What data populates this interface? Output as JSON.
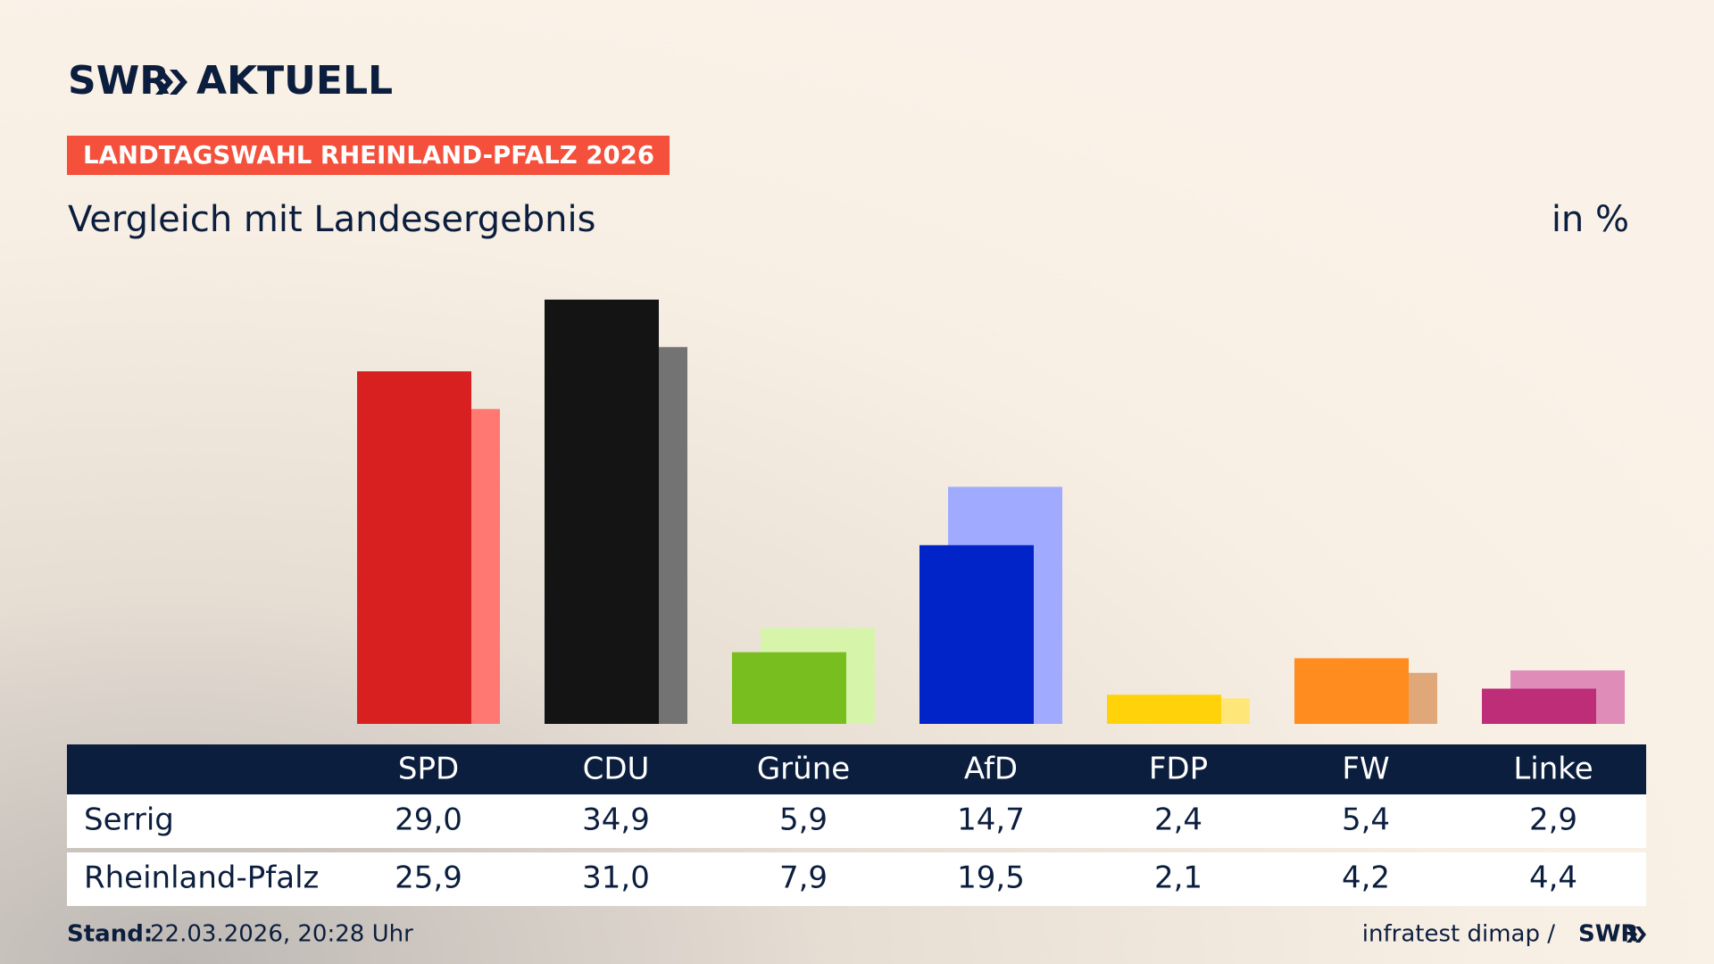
{
  "brand": {
    "name": "SWR",
    "product": "AKTUELL"
  },
  "chart_data": {
    "type": "bar",
    "badge": "LANDTAGSWAHL RHEINLAND-PFALZ 2026",
    "title": "Vergleich mit Landesergebnis",
    "unit": "in %",
    "categories": [
      "SPD",
      "CDU",
      "Grüne",
      "AfD",
      "FDP",
      "FW",
      "Linke"
    ],
    "series": [
      {
        "name": "Serrig",
        "colors": [
          "#d7201f",
          "#141414",
          "#78be1e",
          "#0024c8",
          "#ffd20a",
          "#ff8c1e",
          "#be2d78"
        ],
        "values": [
          29.0,
          34.9,
          5.9,
          14.7,
          2.4,
          5.4,
          2.9
        ],
        "value_labels": [
          "29,0",
          "34,9",
          "5,9",
          "14,7",
          "2,4",
          "5,4",
          "2,9"
        ]
      },
      {
        "name": "Rheinland-Pfalz",
        "colors": [
          "#ff7872",
          "#737373",
          "#d7f5aa",
          "#a0aaff",
          "#ffe678",
          "#e0a878",
          "#e08cb9"
        ],
        "values": [
          25.9,
          31.0,
          7.9,
          19.5,
          2.1,
          4.2,
          4.4
        ],
        "value_labels": [
          "25,9",
          "31,0",
          "7,9",
          "19,5",
          "2,1",
          "4,2",
          "4,4"
        ]
      }
    ],
    "stand_label": "Stand:",
    "stand": "22.03.2026, 20:28 Uhr",
    "source": "infratest dimap /",
    "source_brand": "SWR"
  }
}
